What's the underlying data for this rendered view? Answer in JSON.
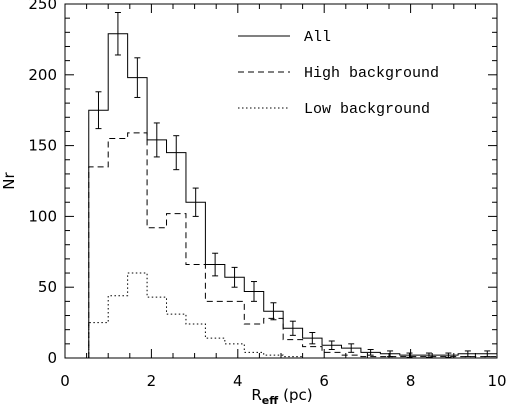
{
  "chart_data": {
    "type": "histogram",
    "xlabel": "R",
    "xlabel_sub": "eff",
    "xlabel_unit": "(pc)",
    "ylabel": "Nr",
    "xlim": [
      0,
      10
    ],
    "ylim": [
      0,
      250
    ],
    "xticks": [
      0,
      2,
      4,
      6,
      8,
      10
    ],
    "yticks": [
      0,
      50,
      100,
      150,
      200,
      250
    ],
    "grid": false,
    "legend_position": "top-right",
    "bin_edges": [
      0.55,
      1.0,
      1.45,
      1.9,
      2.35,
      2.8,
      3.25,
      3.7,
      4.15,
      4.6,
      5.05,
      5.5,
      5.95,
      6.4,
      6.85,
      7.3,
      7.75,
      8.2,
      8.65,
      9.1,
      9.55,
      10.0
    ],
    "series": [
      {
        "name": "All",
        "line_style": "solid",
        "values": [
          175,
          229,
          198,
          154,
          145,
          110,
          66,
          57,
          47,
          33,
          21,
          14,
          9,
          7,
          4,
          3,
          2,
          2,
          2,
          3,
          3
        ],
        "errors": [
          13,
          15,
          14,
          12,
          12,
          10,
          8,
          7,
          7,
          6,
          5,
          4,
          3,
          3,
          2,
          2,
          1.5,
          1.5,
          1.5,
          2,
          2
        ]
      },
      {
        "name": "High background",
        "line_style": "dashed",
        "values": [
          135,
          155,
          159,
          92,
          102,
          66,
          40,
          40,
          24,
          28,
          13,
          8,
          4,
          2,
          1,
          1,
          1,
          1,
          1,
          1,
          1
        ]
      },
      {
        "name": "Low background",
        "line_style": "dotted",
        "values": [
          25,
          44,
          60,
          43,
          31,
          24,
          14,
          10,
          4,
          2,
          1,
          0,
          0,
          0,
          0,
          0,
          0,
          0,
          0,
          0,
          0
        ]
      }
    ]
  }
}
